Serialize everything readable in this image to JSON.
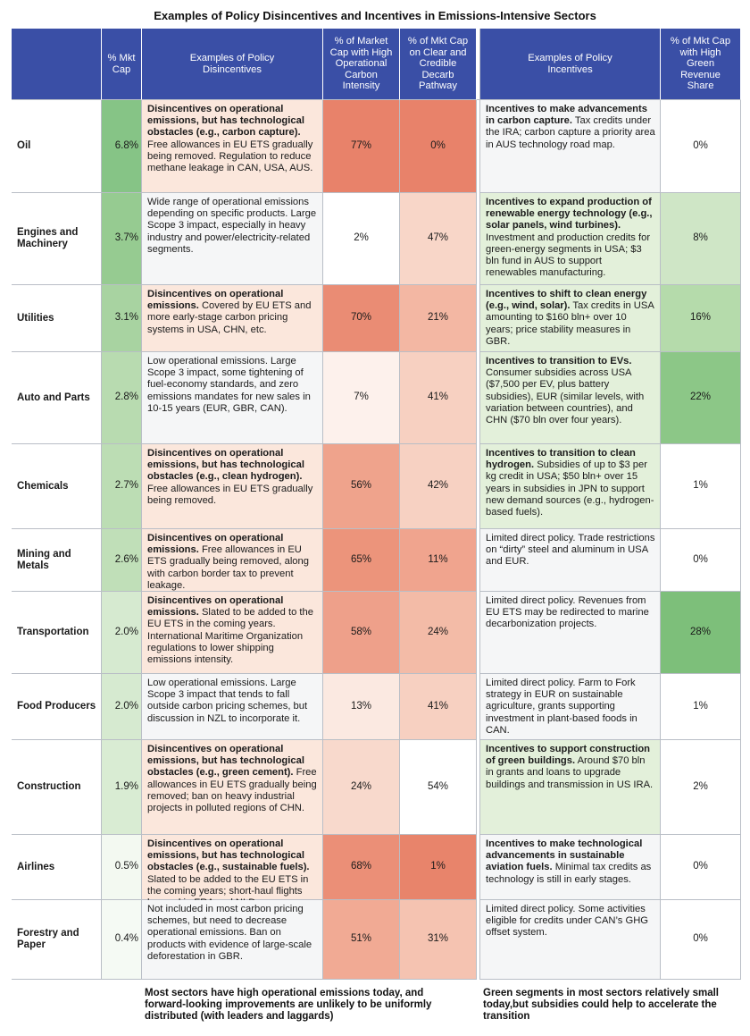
{
  "title": "Examples of Policy Disincentives and Incentives in Emissions-Intensive Sectors",
  "headers": {
    "mkt_cap": "% Mkt Cap",
    "disincentives": "Examples of Policy Disincentives",
    "high_op_intensity": "% of Market Cap with High Operational Carbon Intensity",
    "clear_pathway": "% of Mkt Cap on Clear and Credible Decarb Pathway",
    "incentives": "Examples of Policy Incentives",
    "green_revenue": "% of Mkt Cap with High Green Revenue Share"
  },
  "colors": {
    "header": "#3a4fa6",
    "disincentive_highlight": "#fbe7dc",
    "incentive_highlight": "#e3f0da",
    "neutral": "#f5f6f7"
  },
  "rows": [
    {
      "sector": "Oil",
      "mkt_cap": "6.8%",
      "mkt_cap_color": "#86c486",
      "dis_bold": "Disincentives on operational emissions, but has technological obstacles (e.g., carbon capture).",
      "dis_text": "Free allowances in EU ETS gradually being removed. Regulation to reduce methane leakage in CAN, USA, AUS.",
      "dis_highlight": true,
      "high_op": "77%",
      "high_op_color": "#e8826a",
      "pathway": "0%",
      "pathway_color": "#e8826a",
      "inc_bold": "Incentives to make advancements in carbon capture.",
      "inc_text": "Tax credits under the IRA; carbon capture a priority area in AUS technology road map.",
      "inc_highlight": false,
      "green": "0%",
      "green_color": "#ffffff"
    },
    {
      "sector": "Engines and Machinery",
      "mkt_cap": "3.7%",
      "mkt_cap_color": "#96cb91",
      "dis_bold": "",
      "dis_text": "Wide range of operational emissions depending on specific products. Large Scope 3 impact, especially in heavy industry and power/electricity-related segments.",
      "dis_highlight": false,
      "high_op": "2%",
      "high_op_color": "#ffffff",
      "pathway": "47%",
      "pathway_color": "#f8d6c8",
      "inc_bold": "Incentives to expand production of renewable energy technology (e.g., solar panels, wind turbines).",
      "inc_text": "Investment and production credits for green-energy segments in USA; $3 bln fund in AUS to support renewables manufacturing.",
      "inc_highlight": true,
      "green": "8%",
      "green_color": "#cfe6c6"
    },
    {
      "sector": "Utilities",
      "mkt_cap": "3.1%",
      "mkt_cap_color": "#a8d3a1",
      "dis_bold": "Disincentives on operational emissions.",
      "dis_text": "Covered by EU ETS and more early-stage carbon pricing systems in USA, CHN, etc.",
      "dis_highlight": true,
      "high_op": "70%",
      "high_op_color": "#ea8c74",
      "pathway": "21%",
      "pathway_color": "#f3b7a3",
      "inc_bold": "Incentives to shift to clean energy (e.g., wind, solar).",
      "inc_text": "Tax credits in USA amounting to $160 bln+ over 10 years; price stability measures in GBR.",
      "inc_highlight": true,
      "green": "16%",
      "green_color": "#b5dbab"
    },
    {
      "sector": "Auto and Parts",
      "mkt_cap": "2.8%",
      "mkt_cap_color": "#b8dbb0",
      "dis_bold": "",
      "dis_text": "Low operational emissions. Large Scope 3 impact, some tightening of fuel-economy standards, and zero emissions mandates for new sales in 10-15 years (EUR, GBR, CAN).",
      "dis_highlight": false,
      "high_op": "7%",
      "high_op_color": "#fdf1ec",
      "pathway": "41%",
      "pathway_color": "#f7d0c1",
      "inc_bold": "Incentives to transition to EVs.",
      "inc_text": "Consumer subsidies across USA ($7,500 per EV, plus battery subsidies), EUR (similar levels, with variation between countries), and CHN ($70 bln over four years).",
      "inc_highlight": true,
      "green": "22%",
      "green_color": "#8cc787"
    },
    {
      "sector": "Chemicals",
      "mkt_cap": "2.7%",
      "mkt_cap_color": "#bcddb4",
      "dis_bold": "Disincentives on operational emissions, but has technological obstacles (e.g., clean hydrogen).",
      "dis_text": "Free allowances in EU ETS gradually being removed.",
      "dis_highlight": true,
      "high_op": "56%",
      "high_op_color": "#efa38c",
      "pathway": "42%",
      "pathway_color": "#f7d1c2",
      "inc_bold": "Incentives to transition to clean hydrogen.",
      "inc_text": "Subsidies of up to $3 per kg credit in USA; $50 bln+ over 15 years in subsidies in JPN to support new demand sources (e.g., hydrogen-based fuels).",
      "inc_highlight": true,
      "green": "1%",
      "green_color": "#ffffff"
    },
    {
      "sector": "Mining and Metals",
      "mkt_cap": "2.6%",
      "mkt_cap_color": "#c0dfb8",
      "dis_bold": "Disincentives on operational emissions.",
      "dis_text": "Free allowances in EU ETS gradually being removed, along with carbon border tax to prevent leakage.",
      "dis_highlight": true,
      "high_op": "65%",
      "high_op_color": "#ec947b",
      "pathway": "11%",
      "pathway_color": "#f0a48e",
      "inc_bold": "",
      "inc_text": "Limited direct policy. Trade restrictions on “dirty” steel and aluminum in USA and EUR.",
      "inc_highlight": false,
      "green": "0%",
      "green_color": "#ffffff"
    },
    {
      "sector": "Transportation",
      "mkt_cap": "2.0%",
      "mkt_cap_color": "#d6ead0",
      "dis_bold": "Disincentives on operational emissions.",
      "dis_text": "Slated to be added to the EU ETS in the coming years. International Maritime Organization regulations to lower shipping emissions intensity.",
      "dis_highlight": true,
      "high_op": "58%",
      "high_op_color": "#eea08a",
      "pathway": "24%",
      "pathway_color": "#f3bba7",
      "inc_bold": "",
      "inc_text": "Limited direct policy. Revenues from EU ETS may be redirected to marine decarbonization projects.",
      "inc_highlight": false,
      "green": "28%",
      "green_color": "#7dbf7a"
    },
    {
      "sector": "Food Producers",
      "mkt_cap": "2.0%",
      "mkt_cap_color": "#d6ead0",
      "dis_bold": "",
      "dis_text": "Low operational emissions. Large Scope 3 impact that tends to fall outside carbon pricing schemes, but discussion in NZL to incorporate it.",
      "dis_highlight": false,
      "high_op": "13%",
      "high_op_color": "#fbe9e1",
      "pathway": "41%",
      "pathway_color": "#f7d0c1",
      "inc_bold": "",
      "inc_text": "Limited direct policy. Farm to Fork strategy in EUR on sustainable agriculture, grants supporting investment in plant-based foods in CAN.",
      "inc_highlight": false,
      "green": "1%",
      "green_color": "#ffffff"
    },
    {
      "sector": "Construction",
      "mkt_cap": "1.9%",
      "mkt_cap_color": "#d9ecd3",
      "dis_bold": "Disincentives on operational emissions, but has technological obstacles (e.g., green cement).",
      "dis_text": "Free allowances in EU ETS gradually being removed; ban on heavy industrial projects in polluted regions of CHN.",
      "dis_highlight": true,
      "high_op": "24%",
      "high_op_color": "#f8d9cc",
      "pathway": "54%",
      "pathway_color": "#ffffff",
      "inc_bold": "Incentives to support construction of green buildings.",
      "inc_text": "Around $70 bln in grants and loans to upgrade buildings and transmission in US IRA.",
      "inc_highlight": true,
      "green": "2%",
      "green_color": "#ffffff"
    },
    {
      "sector": "Airlines",
      "mkt_cap": "0.5%",
      "mkt_cap_color": "#f3f9f1",
      "dis_bold": "Disincentives on operational emissions, but has technological obstacles (e.g., sustainable fuels).",
      "dis_text": "Slated to be added to the EU ETS in the coming years; short-haul flights banned in FRA and NLD.",
      "dis_highlight": true,
      "high_op": "68%",
      "high_op_color": "#eb8f77",
      "pathway": "1%",
      "pathway_color": "#e8846b",
      "inc_bold": "Incentives to make technological advancements in sustainable aviation fuels.",
      "inc_text": "Minimal tax credits as technology is still in early stages.",
      "inc_highlight": false,
      "green": "0%",
      "green_color": "#ffffff"
    },
    {
      "sector": "Forestry and Paper",
      "mkt_cap": "0.4%",
      "mkt_cap_color": "#f5faf4",
      "dis_bold": "",
      "dis_text": "Not included in most carbon pricing schemes, but need to decrease operational emissions. Ban on products with evidence of large-scale deforestation in GBR.",
      "dis_highlight": false,
      "high_op": "51%",
      "high_op_color": "#f1aa94",
      "pathway": "31%",
      "pathway_color": "#f5c3b1",
      "inc_bold": "",
      "inc_text": "Limited direct policy. Some activities eligible for credits under CAN’s GHG offset system.",
      "inc_highlight": false,
      "green": "0%",
      "green_color": "#ffffff"
    }
  ],
  "footnotes": {
    "left": "Most sectors have high operational emissions today, and forward-looking improvements are unlikely to be uniformly distributed (with leaders and laggards)",
    "right": "Green segments in most sectors relatively small today,but subsidies could help to accelerate the transition"
  }
}
